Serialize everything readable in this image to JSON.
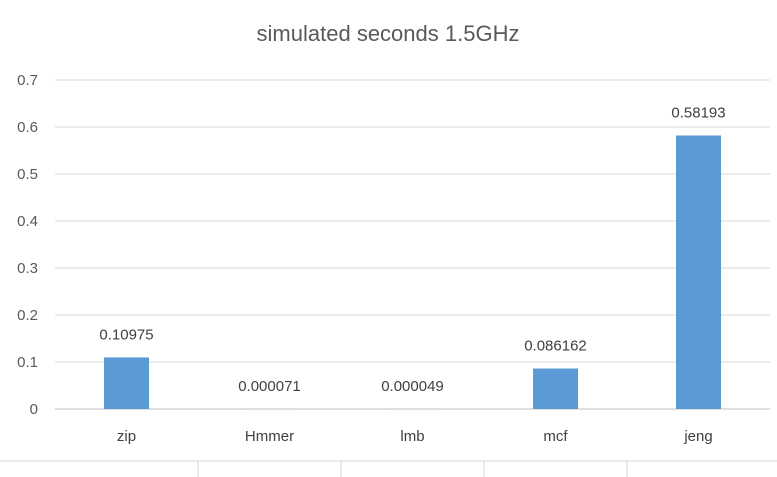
{
  "chart_data": {
    "type": "bar",
    "title": "simulated seconds 1.5GHz",
    "categories": [
      "zip",
      "Hmmer",
      "lmb",
      "mcf",
      "jeng"
    ],
    "values": [
      0.10975,
      7.1e-05,
      4.9e-05,
      0.086162,
      0.58193
    ],
    "data_labels": [
      "0.10975",
      "0.000071",
      "0.000049",
      "0.086162",
      "0.58193"
    ],
    "y_ticks": [
      "0",
      "0.1",
      "0.2",
      "0.3",
      "0.4",
      "0.5",
      "0.6",
      "0.7"
    ],
    "ylim": [
      0,
      0.7
    ],
    "xlabel": "",
    "ylabel": "",
    "grid": true,
    "legend": "none",
    "colors": {
      "bar": "#5b9bd5",
      "grid": "#d9d9d9",
      "axis": "#bfbfbf"
    }
  }
}
